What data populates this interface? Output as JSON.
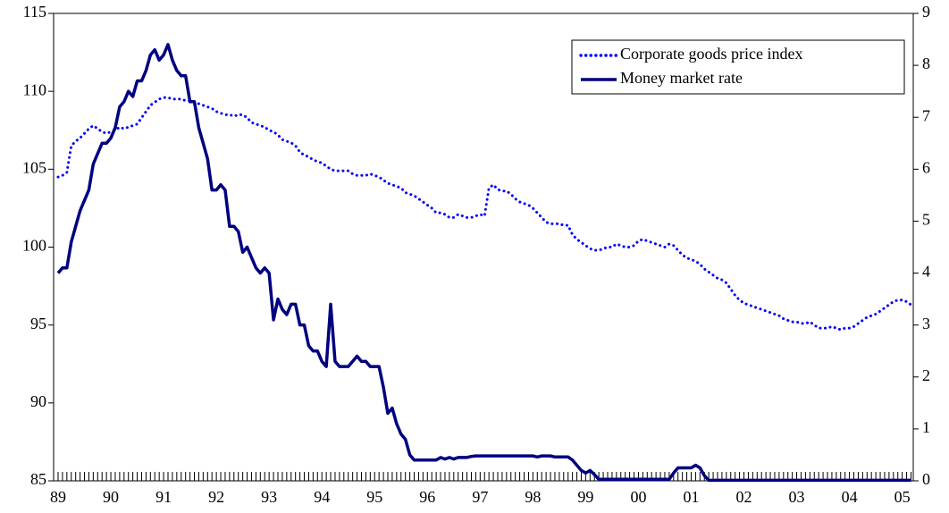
{
  "chart_data": {
    "type": "line",
    "categories": [
      "89",
      null,
      null,
      null,
      null,
      null,
      null,
      null,
      null,
      null,
      null,
      null,
      "90",
      null,
      null,
      null,
      null,
      null,
      null,
      null,
      null,
      null,
      null,
      null,
      "91",
      null,
      null,
      null,
      null,
      null,
      null,
      null,
      null,
      null,
      null,
      null,
      "92",
      null,
      null,
      null,
      null,
      null,
      null,
      null,
      null,
      null,
      null,
      null,
      "93",
      null,
      null,
      null,
      null,
      null,
      null,
      null,
      null,
      null,
      null,
      null,
      "94",
      null,
      null,
      null,
      null,
      null,
      null,
      null,
      null,
      null,
      null,
      null,
      "95",
      null,
      null,
      null,
      null,
      null,
      null,
      null,
      null,
      null,
      null,
      null,
      "96",
      null,
      null,
      null,
      null,
      null,
      null,
      null,
      null,
      null,
      null,
      null,
      "97",
      null,
      null,
      null,
      null,
      null,
      null,
      null,
      null,
      null,
      null,
      null,
      "98",
      null,
      null,
      null,
      null,
      null,
      null,
      null,
      null,
      null,
      null,
      null,
      "99",
      null,
      null,
      null,
      null,
      null,
      null,
      null,
      null,
      null,
      null,
      null,
      "00",
      null,
      null,
      null,
      null,
      null,
      null,
      null,
      null,
      null,
      null,
      null,
      "01",
      null,
      null,
      null,
      null,
      null,
      null,
      null,
      null,
      null,
      null,
      null,
      "02",
      null,
      null,
      null,
      null,
      null,
      null,
      null,
      null,
      null,
      null,
      null,
      "03",
      null,
      null,
      null,
      null,
      null,
      null,
      null,
      null,
      null,
      null,
      null,
      "04",
      null,
      null,
      null,
      null,
      null,
      null,
      null,
      null,
      null,
      null,
      null,
      "05",
      null,
      null
    ],
    "series": [
      {
        "name": "Corporate goods price index",
        "color": "#0000ff",
        "style": "dotted",
        "axis": "y",
        "values": [
          104.5,
          104.6,
          104.8,
          106.5,
          106.8,
          107.0,
          107.3,
          107.6,
          107.8,
          107.6,
          107.4,
          107.3,
          107.4,
          107.5,
          107.7,
          107.6,
          107.7,
          107.8,
          107.9,
          108.3,
          108.7,
          109.1,
          109.3,
          109.5,
          109.6,
          109.6,
          109.5,
          109.5,
          109.5,
          109.4,
          109.4,
          109.3,
          109.2,
          109.1,
          109.0,
          108.9,
          108.7,
          108.6,
          108.5,
          108.5,
          108.4,
          108.5,
          108.5,
          108.3,
          108.0,
          107.9,
          107.8,
          107.7,
          107.5,
          107.4,
          107.2,
          106.9,
          106.8,
          106.7,
          106.5,
          106.1,
          105.9,
          105.8,
          105.6,
          105.5,
          105.4,
          105.2,
          105.0,
          104.9,
          104.9,
          104.9,
          104.9,
          104.7,
          104.6,
          104.6,
          104.6,
          104.7,
          104.6,
          104.5,
          104.3,
          104.1,
          104.0,
          103.9,
          103.8,
          103.5,
          103.4,
          103.3,
          103.1,
          102.9,
          102.7,
          102.5,
          102.2,
          102.2,
          102.1,
          101.9,
          101.9,
          102.1,
          102.0,
          101.9,
          101.9,
          102.0,
          102.1,
          102.0,
          103.8,
          104.0,
          103.7,
          103.6,
          103.6,
          103.4,
          103.1,
          102.9,
          102.8,
          102.7,
          102.5,
          102.2,
          101.9,
          101.6,
          101.5,
          101.5,
          101.5,
          101.4,
          101.4,
          100.8,
          100.5,
          100.3,
          100.1,
          99.9,
          99.8,
          99.8,
          99.9,
          100.0,
          100.0,
          100.2,
          100.1,
          100.0,
          100.0,
          100.1,
          100.4,
          100.5,
          100.4,
          100.3,
          100.2,
          100.1,
          100.0,
          100.2,
          100.1,
          99.8,
          99.5,
          99.3,
          99.2,
          99.1,
          98.9,
          98.6,
          98.4,
          98.2,
          98.0,
          97.9,
          97.7,
          97.3,
          96.9,
          96.6,
          96.4,
          96.3,
          96.2,
          96.1,
          96.0,
          95.9,
          95.8,
          95.7,
          95.6,
          95.4,
          95.3,
          95.2,
          95.2,
          95.1,
          95.1,
          95.2,
          95.0,
          94.8,
          94.8,
          94.8,
          94.9,
          94.8,
          94.7,
          94.8,
          94.8,
          94.9,
          95.1,
          95.3,
          95.5,
          95.6,
          95.7,
          95.9,
          96.1,
          96.3,
          96.5,
          96.6,
          96.6,
          96.5,
          96.3
        ]
      },
      {
        "name": "Money market rate",
        "color": "#000080",
        "style": "solid",
        "axis": "y2",
        "values": [
          4.0,
          4.1,
          4.1,
          4.6,
          4.9,
          5.2,
          5.4,
          5.6,
          6.1,
          6.3,
          6.5,
          6.5,
          6.6,
          6.8,
          7.2,
          7.3,
          7.5,
          7.4,
          7.7,
          7.7,
          7.9,
          8.2,
          8.3,
          8.1,
          8.2,
          8.4,
          8.1,
          7.9,
          7.8,
          7.8,
          7.3,
          7.3,
          6.8,
          6.5,
          6.2,
          5.6,
          5.6,
          5.7,
          5.6,
          4.9,
          4.9,
          4.8,
          4.4,
          4.5,
          4.3,
          4.1,
          4.0,
          4.1,
          4.0,
          3.1,
          3.5,
          3.3,
          3.2,
          3.4,
          3.4,
          3.0,
          3.0,
          2.6,
          2.5,
          2.5,
          2.3,
          2.2,
          3.4,
          2.3,
          2.2,
          2.2,
          2.2,
          2.3,
          2.4,
          2.3,
          2.3,
          2.2,
          2.2,
          2.2,
          1.8,
          1.3,
          1.4,
          1.1,
          0.9,
          0.8,
          0.5,
          0.4,
          0.4,
          0.4,
          0.4,
          0.4,
          0.4,
          0.45,
          0.42,
          0.45,
          0.42,
          0.45,
          0.45,
          0.45,
          0.47,
          0.48,
          0.48,
          0.48,
          0.48,
          0.48,
          0.48,
          0.48,
          0.48,
          0.48,
          0.48,
          0.48,
          0.48,
          0.48,
          0.48,
          0.46,
          0.48,
          0.48,
          0.48,
          0.46,
          0.46,
          0.46,
          0.46,
          0.4,
          0.3,
          0.2,
          0.15,
          0.2,
          0.12,
          0.03,
          0.03,
          0.03,
          0.03,
          0.03,
          0.03,
          0.03,
          0.03,
          0.03,
          0.03,
          0.03,
          0.03,
          0.03,
          0.03,
          0.03,
          0.03,
          0.03,
          0.15,
          0.25,
          0.25,
          0.25,
          0.25,
          0.3,
          0.25,
          0.1,
          0.01,
          0.01,
          0.01,
          0.01,
          0.01,
          0.01,
          0.01,
          0.01,
          0.01,
          0.01,
          0.01,
          0.01,
          0.01,
          0.01,
          0.01,
          0.01,
          0.01,
          0.01,
          0.01,
          0.01,
          0.01,
          0.01,
          0.01,
          0.01,
          0.01,
          0.01,
          0.01,
          0.01,
          0.01,
          0.01,
          0.01,
          0.01,
          0.01,
          0.01,
          0.01,
          0.01,
          0.01,
          0.01,
          0.01,
          0.01,
          0.01,
          0.01,
          0.01,
          0.01,
          0.01,
          0.01,
          0.01
        ]
      }
    ],
    "ylim": [
      85,
      115
    ],
    "yticks": [
      85,
      90,
      95,
      100,
      105,
      110,
      115
    ],
    "y2lim": [
      0,
      9
    ],
    "y2ticks": [
      0,
      1,
      2,
      3,
      4,
      5,
      6,
      7,
      8,
      9
    ],
    "legend": "upper right"
  }
}
